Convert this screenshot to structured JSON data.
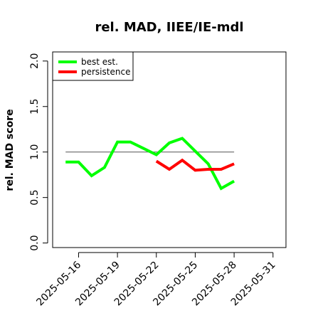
{
  "chart_data": {
    "type": "line",
    "title": "rel. MAD, IIEE/IE-mdl",
    "xlabel": "",
    "ylabel": "rel. MAD score",
    "x_ticks": [
      "2025-05-16",
      "2025-05-19",
      "2025-05-22",
      "2025-05-25",
      "2025-05-28",
      "2025-05-31"
    ],
    "y_ticks": [
      "0.0",
      "0.5",
      "1.0",
      "1.5",
      "2.0"
    ],
    "xlim": [
      "2025-05-14",
      "2025-06-01"
    ],
    "ylim": [
      -0.05,
      2.1
    ],
    "reference_line": {
      "y": 1.0,
      "x_start": "2025-05-15",
      "x_end": "2025-05-28",
      "color": "#666666"
    },
    "legend": {
      "position": "top-left",
      "boxed": true
    },
    "series": [
      {
        "name": "best est.",
        "color": "#00ff00",
        "points": [
          {
            "x": "2025-05-15",
            "y": 0.89
          },
          {
            "x": "2025-05-16",
            "y": 0.89
          },
          {
            "x": "2025-05-17",
            "y": 0.74
          },
          {
            "x": "2025-05-18",
            "y": 0.83
          },
          {
            "x": "2025-05-19",
            "y": 1.11
          },
          {
            "x": "2025-05-20",
            "y": 1.11
          },
          {
            "x": "2025-05-21",
            "y": 1.04
          },
          {
            "x": "2025-05-22",
            "y": 0.97
          },
          {
            "x": "2025-05-23",
            "y": 1.1
          },
          {
            "x": "2025-05-24",
            "y": 1.15
          },
          {
            "x": "2025-05-25",
            "y": 1.01
          },
          {
            "x": "2025-05-26",
            "y": 0.87
          },
          {
            "x": "2025-05-27",
            "y": 0.6
          },
          {
            "x": "2025-05-28",
            "y": 0.68
          }
        ]
      },
      {
        "name": "persistence",
        "color": "#ff0000",
        "points": [
          {
            "x": "2025-05-22",
            "y": 0.9
          },
          {
            "x": "2025-05-23",
            "y": 0.81
          },
          {
            "x": "2025-05-24",
            "y": 0.91
          },
          {
            "x": "2025-05-25",
            "y": 0.8
          },
          {
            "x": "2025-05-26",
            "y": 0.81
          },
          {
            "x": "2025-05-27",
            "y": 0.81
          },
          {
            "x": "2025-05-28",
            "y": 0.87
          }
        ]
      }
    ]
  }
}
